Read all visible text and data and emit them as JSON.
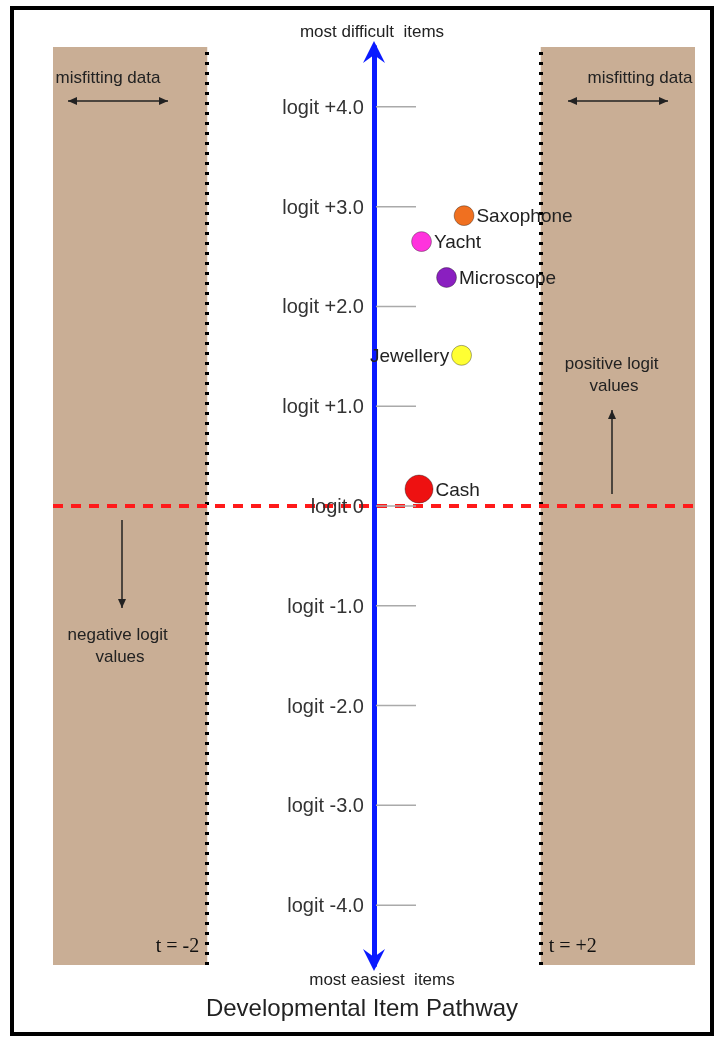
{
  "chart_data": {
    "type": "bubble",
    "title": "Developmental Item Pathway",
    "xlim": [
      -3.85,
      3.85
    ],
    "ylim": [
      -4.6,
      4.6
    ],
    "yticks": [
      {
        "value": 4,
        "label": "logit +4.0"
      },
      {
        "value": 3,
        "label": "logit +3.0"
      },
      {
        "value": 2,
        "label": "logit +2.0"
      },
      {
        "value": 1,
        "label": "logit +1.0"
      },
      {
        "value": 0,
        "label": "logit 0"
      },
      {
        "value": -1,
        "label": "logit -1.0"
      },
      {
        "value": -2,
        "label": "logit -2.0"
      },
      {
        "value": -3,
        "label": "logit -3.0"
      },
      {
        "value": -4,
        "label": "logit -4.0"
      }
    ],
    "tick_labels": "y",
    "grid": false,
    "legend": false,
    "marker": "circle",
    "series": [
      {
        "name": "Saxophone",
        "color": "#f07020",
        "x": [
          1.08
        ],
        "values": [
          2.91
        ],
        "sizes": [
          0.5
        ]
      },
      {
        "name": "Yacht",
        "color": "#ff33dd",
        "x": [
          0.57
        ],
        "values": [
          2.65
        ],
        "sizes": [
          0.5
        ]
      },
      {
        "name": "Microscope",
        "color": "#8a1fc0",
        "x": [
          0.87
        ],
        "values": [
          2.29
        ],
        "sizes": [
          0.5
        ]
      },
      {
        "name": "Jewellery",
        "color": "#ffff33",
        "x": [
          1.05
        ],
        "values": [
          1.51
        ],
        "sizes": [
          0.5
        ]
      },
      {
        "name": "Cash",
        "color": "#ee1111",
        "x": [
          0.54
        ],
        "values": [
          0.17
        ],
        "sizes": [
          1
        ]
      }
    ],
    "bands": [
      {
        "axis": "x",
        "from": -3.85,
        "to": -2,
        "color": "#c9ae95"
      },
      {
        "axis": "x",
        "from": 2,
        "to": 3.85,
        "color": "#c9ae95"
      }
    ],
    "ref_lines": [
      {
        "axis": "x",
        "value": -2,
        "label": "t = -2",
        "color": "#000000",
        "line_style": "dotted"
      },
      {
        "axis": "x",
        "value": 2,
        "label": "t = +2",
        "color": "#000000",
        "line_style": "dotted"
      },
      {
        "axis": "y",
        "value": 0,
        "color": "#ff1a1a",
        "line_style": "dashed"
      }
    ],
    "annotations": [
      "most difficult  items",
      "most easiest  items",
      "misfitting data",
      "misfitting data",
      "positive logit values",
      "negative logit values"
    ]
  }
}
